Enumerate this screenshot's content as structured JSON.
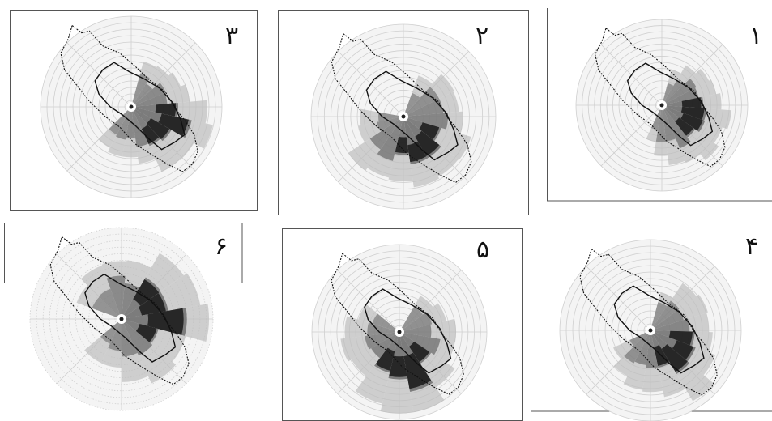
{
  "panels": [
    {
      "label": "۳",
      "frame": "box",
      "level": 3,
      "dark_angle": 120,
      "spread": 210
    },
    {
      "label": "۲",
      "frame": "box",
      "level": 2,
      "dark_angle": 150,
      "spread": 260
    },
    {
      "label": "۱",
      "frame": "corner",
      "level": 1,
      "dark_angle": 110,
      "spread": 190
    },
    {
      "label": "۶",
      "frame": "sides",
      "level": 6,
      "dark_angle": 80,
      "spread": 300
    },
    {
      "label": "۵",
      "frame": "box",
      "level": 5,
      "dark_angle": 170,
      "spread": 280
    },
    {
      "label": "۴",
      "frame": "corner",
      "level": 4,
      "dark_angle": 130,
      "spread": 230
    }
  ],
  "colors": {
    "frame": "#555555",
    "outline": "#111111",
    "grid": "#cfcfcf",
    "dark": "#1e1e1e",
    "mid": "#6a6a6a",
    "light": "#bdbdbd"
  }
}
